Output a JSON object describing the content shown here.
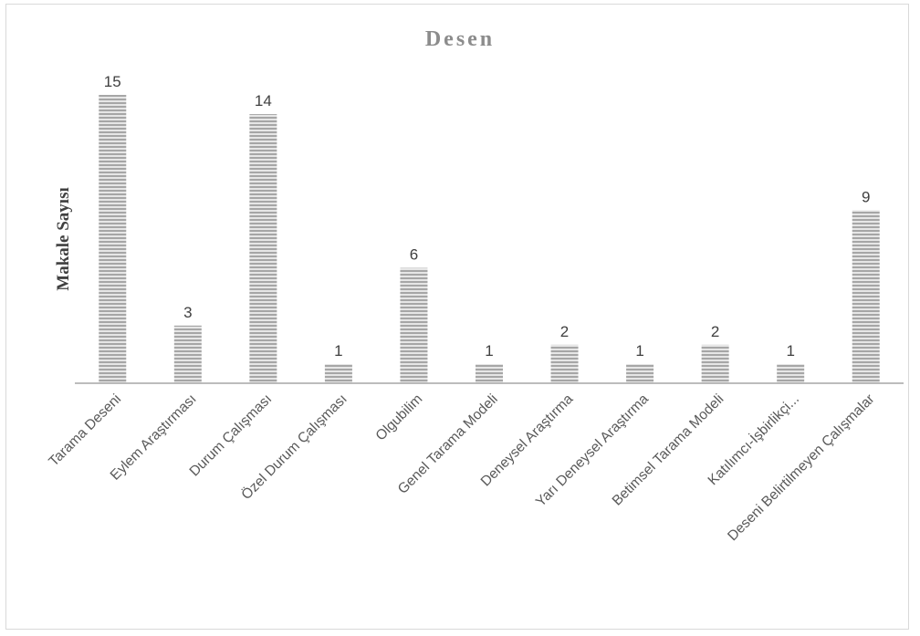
{
  "chart_data": {
    "type": "bar",
    "title": "Desen",
    "xlabel": "",
    "ylabel": "Makale Sayısı",
    "categories": [
      "Tarama Deseni",
      "Eylem Araştırması",
      "Durum Çalışması",
      "Özel Durum Çalışması",
      "Olgubilim",
      "Genel Tarama Modeli",
      "Deneysel Araştırma",
      "Yarı Deneysel Araştırma",
      "Betimsel Tarama Modeli",
      "Katılımcı-İşbirlikçi...",
      "Deseni Belirtilmeyen Çalışmalar"
    ],
    "values": [
      15,
      3,
      14,
      1,
      6,
      1,
      2,
      1,
      2,
      1,
      9
    ],
    "ylim": [
      0,
      15
    ],
    "grid": false,
    "legend": "none",
    "data_labels": true,
    "colors": {
      "bar_fill": "#a6a6a6",
      "bar_stripe": "#e6e6e6",
      "axis": "#a6a6a6",
      "title": "#8c8c8c"
    }
  }
}
